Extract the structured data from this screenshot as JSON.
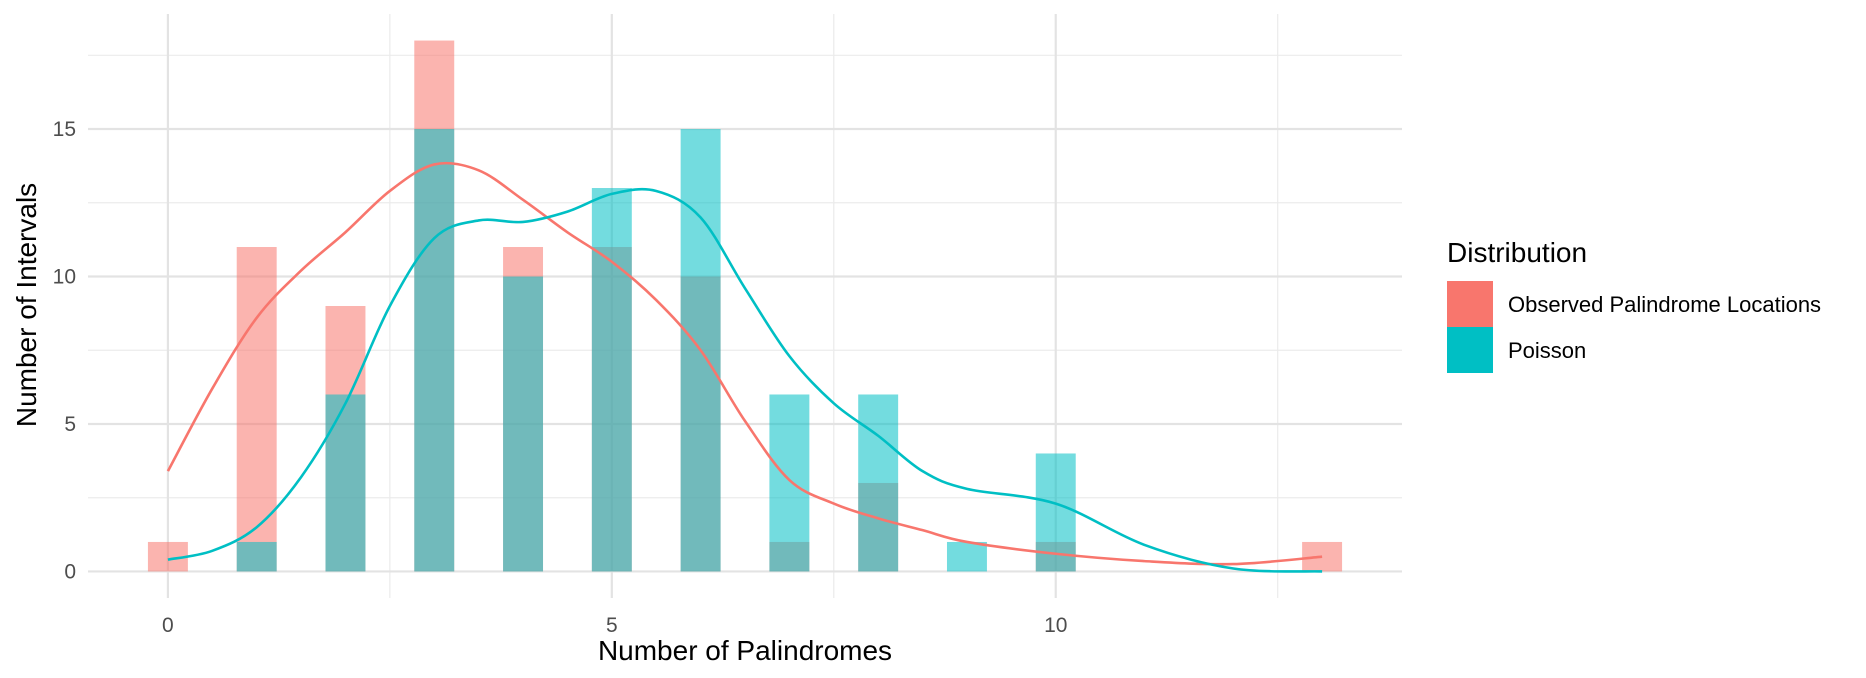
{
  "chart_data": {
    "type": "bar",
    "xlabel": "Number of Palindromes",
    "ylabel": "Number of Intervals",
    "xlim": [
      -0.9,
      13.9
    ],
    "ylim": [
      -0.9,
      18.9
    ],
    "x_ticks": [
      0,
      5,
      10
    ],
    "x_tick_labels": [
      "0",
      "5",
      "10"
    ],
    "y_ticks": [
      0,
      5,
      10,
      15
    ],
    "y_tick_labels": [
      "0",
      "5",
      "10",
      "15"
    ],
    "grid": true,
    "legend": {
      "title": "Distribution",
      "position": "right",
      "entries": [
        "Observed Palindrome Locations",
        "Poisson"
      ]
    },
    "series": [
      {
        "name": "Observed Palindrome Locations",
        "color": "#F8766D",
        "bars": [
          {
            "x": 0,
            "y": 1
          },
          {
            "x": 1,
            "y": 11
          },
          {
            "x": 2,
            "y": 9
          },
          {
            "x": 3,
            "y": 18
          },
          {
            "x": 4,
            "y": 11
          },
          {
            "x": 5,
            "y": 11
          },
          {
            "x": 6,
            "y": 10
          },
          {
            "x": 7,
            "y": 1
          },
          {
            "x": 8,
            "y": 3
          },
          {
            "x": 10,
            "y": 1
          },
          {
            "x": 13,
            "y": 1
          }
        ],
        "density_curve": [
          [
            0,
            3.4
          ],
          [
            0.5,
            6.2
          ],
          [
            1,
            8.6
          ],
          [
            1.5,
            10.2
          ],
          [
            2,
            11.5
          ],
          [
            2.5,
            12.9
          ],
          [
            3,
            13.8
          ],
          [
            3.5,
            13.6
          ],
          [
            4,
            12.6
          ],
          [
            4.5,
            11.5
          ],
          [
            5,
            10.5
          ],
          [
            5.5,
            9.2
          ],
          [
            6,
            7.5
          ],
          [
            6.5,
            5.1
          ],
          [
            7,
            3.1
          ],
          [
            7.5,
            2.3
          ],
          [
            8,
            1.8
          ],
          [
            8.5,
            1.4
          ],
          [
            9,
            1.0
          ],
          [
            10,
            0.6
          ],
          [
            11,
            0.35
          ],
          [
            12,
            0.25
          ],
          [
            13,
            0.5
          ]
        ]
      },
      {
        "name": "Poisson",
        "color": "#00BFC4",
        "bars": [
          {
            "x": 1,
            "y": 1
          },
          {
            "x": 2,
            "y": 6
          },
          {
            "x": 3,
            "y": 15
          },
          {
            "x": 4,
            "y": 10
          },
          {
            "x": 5,
            "y": 13
          },
          {
            "x": 6,
            "y": 15
          },
          {
            "x": 7,
            "y": 6
          },
          {
            "x": 8,
            "y": 6
          },
          {
            "x": 9,
            "y": 1
          },
          {
            "x": 10,
            "y": 4
          }
        ],
        "density_curve": [
          [
            0,
            0.4
          ],
          [
            0.5,
            0.7
          ],
          [
            1,
            1.5
          ],
          [
            1.5,
            3.2
          ],
          [
            2,
            5.7
          ],
          [
            2.5,
            9.0
          ],
          [
            3,
            11.3
          ],
          [
            3.5,
            11.9
          ],
          [
            4,
            11.85
          ],
          [
            4.5,
            12.2
          ],
          [
            5,
            12.8
          ],
          [
            5.5,
            12.9
          ],
          [
            6,
            12.0
          ],
          [
            6.5,
            9.6
          ],
          [
            7,
            7.3
          ],
          [
            7.5,
            5.7
          ],
          [
            8,
            4.6
          ],
          [
            8.5,
            3.4
          ],
          [
            9,
            2.8
          ],
          [
            10,
            2.3
          ],
          [
            11,
            0.9
          ],
          [
            12,
            0.1
          ],
          [
            13,
            0.0
          ]
        ]
      }
    ]
  }
}
